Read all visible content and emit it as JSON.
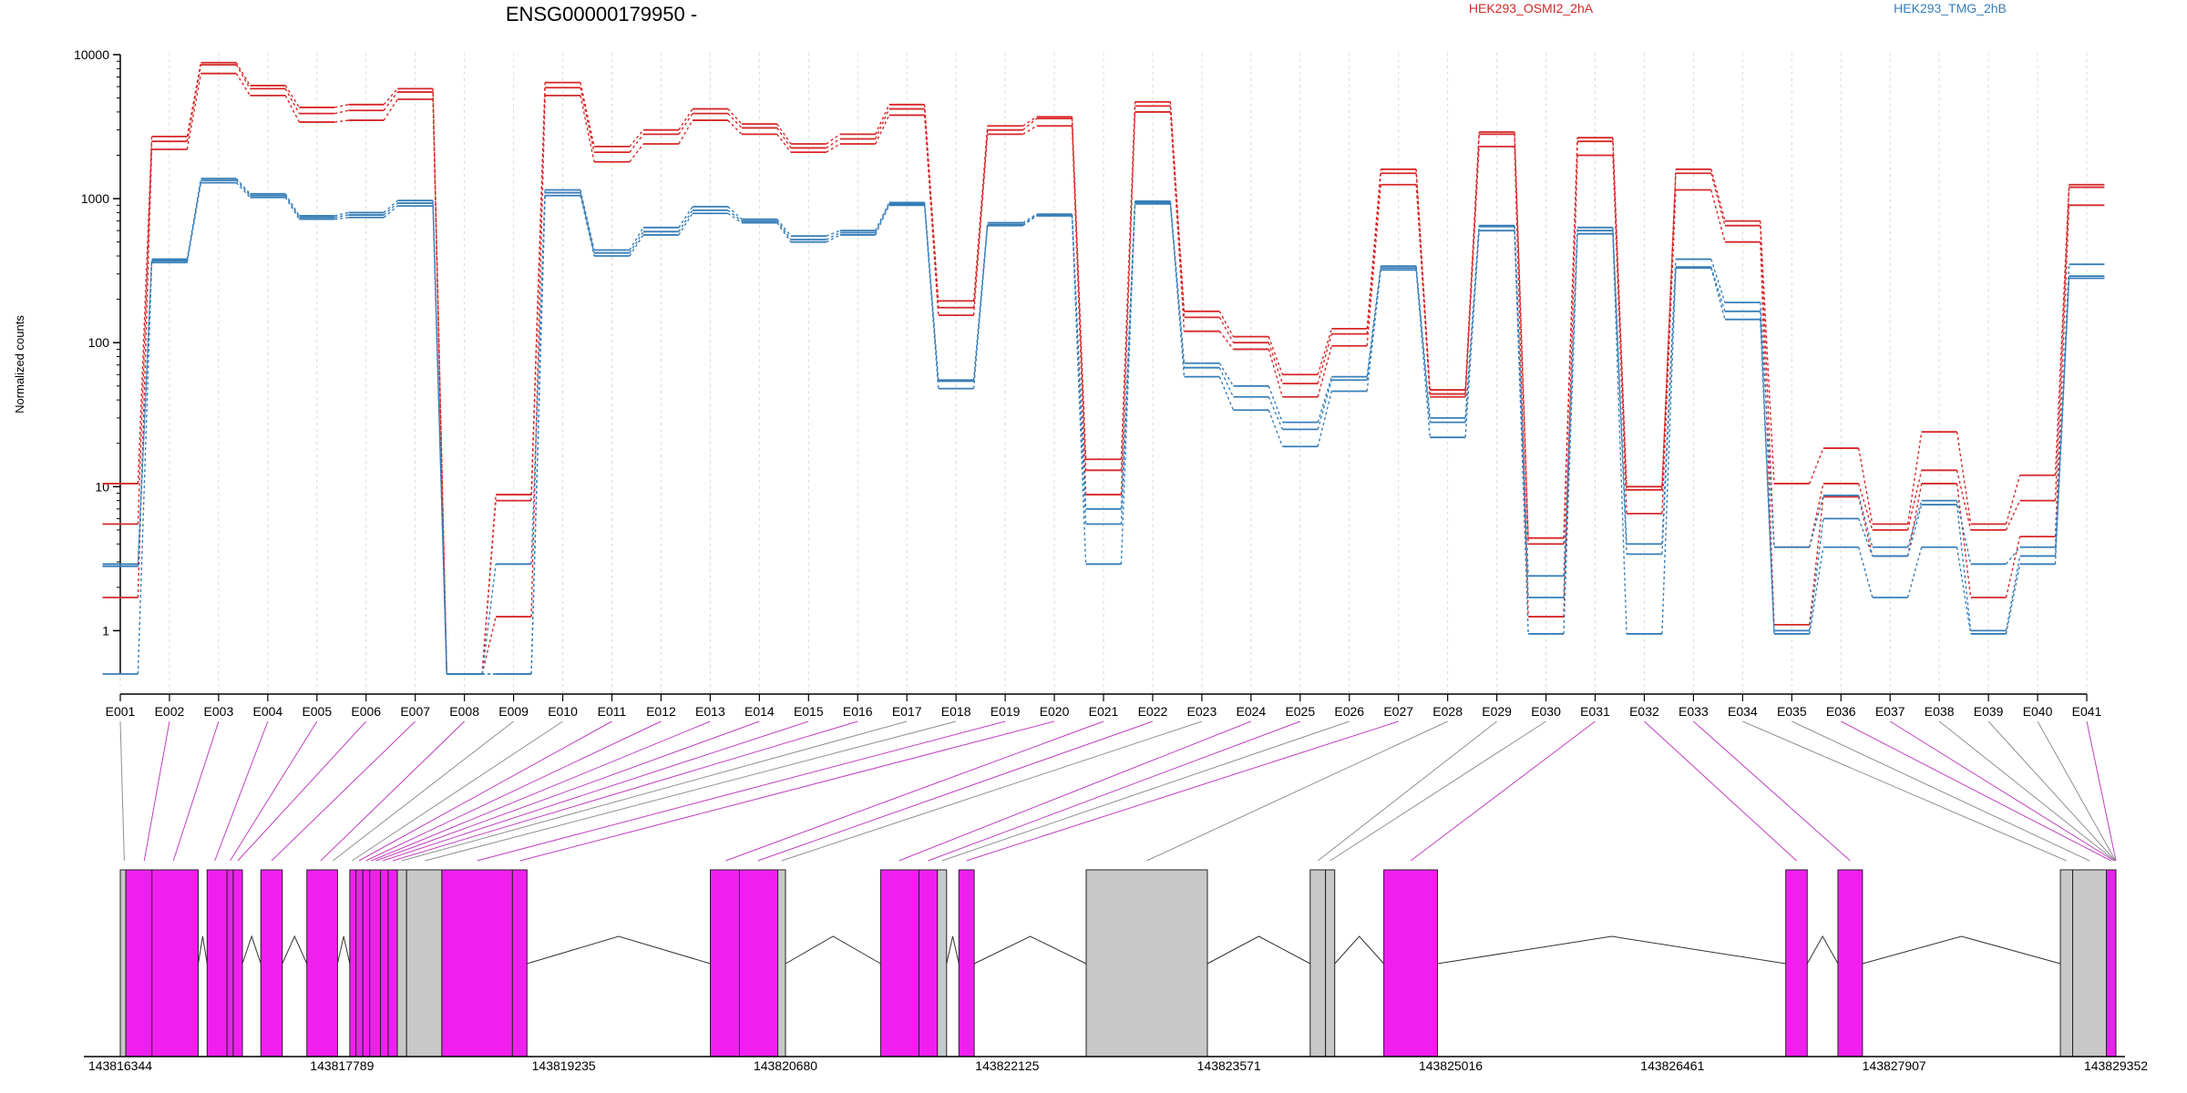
{
  "chart_data": {
    "type": "line",
    "title": "ENSG00000179950 -",
    "ylabel": "Normalized counts",
    "yscale": "log",
    "yticks": [
      "10000",
      "1000",
      "100",
      "10",
      "1"
    ],
    "ylim": [
      0.5,
      10000
    ],
    "grid": "vertical dotted lines at each exon",
    "legend": "top-right",
    "colors": {
      "HEK293_OSMI2_2hA": "#d62728",
      "HEK293_TMG_2hB": "#377eb8",
      "exon_used": "#f01ff0",
      "exon_unused": "#c8c8c8",
      "connector_used": "#c040c0",
      "connector_unused": "#909090"
    },
    "categories": [
      "E001",
      "E002",
      "E003",
      "E004",
      "E005",
      "E006",
      "E007",
      "E008",
      "E009",
      "E010",
      "E011",
      "E012",
      "E013",
      "E014",
      "E015",
      "E016",
      "E017",
      "E018",
      "E019",
      "E020",
      "E021",
      "E022",
      "E023",
      "E024",
      "E025",
      "E026",
      "E027",
      "E028",
      "E029",
      "E030",
      "E031",
      "E032",
      "E033",
      "E034",
      "E035",
      "E036",
      "E037",
      "E038",
      "E039",
      "E040",
      "E041"
    ],
    "groups": [
      {
        "name": "HEK293_OSMI2_2hA",
        "color": "#d62728",
        "samples": [
          [
            10.5,
            2700,
            8800,
            6100,
            4300,
            4500,
            5800,
            0.5,
            8.8,
            6400,
            2300,
            3000,
            4200,
            3300,
            2400,
            2800,
            4500,
            195,
            3200,
            3700,
            15.5,
            4700,
            165,
            110,
            60,
            125,
            1600,
            47,
            2900,
            4.4,
            2650,
            10,
            1600,
            700,
            10.5,
            18.5,
            5.5,
            24,
            5.5,
            12,
            1250
          ],
          [
            5.5,
            2500,
            8500,
            5800,
            3900,
            4100,
            5500,
            0.5,
            8.0,
            5900,
            2100,
            2800,
            3900,
            3100,
            2250,
            2600,
            4200,
            175,
            3000,
            3600,
            13,
            4400,
            150,
            100,
            52,
            115,
            1500,
            44,
            2800,
            4.0,
            2500,
            9.5,
            1500,
            650,
            3.8,
            10.5,
            5.0,
            13,
            5.0,
            8,
            1200
          ],
          [
            1.7,
            2200,
            7400,
            5200,
            3400,
            3500,
            4900,
            0.5,
            1.25,
            5200,
            1800,
            2400,
            3500,
            2800,
            2100,
            2400,
            3800,
            155,
            2800,
            3200,
            8.8,
            4000,
            120,
            90,
            42,
            95,
            1250,
            42,
            2300,
            1.25,
            2000,
            6.5,
            1150,
            500,
            1.1,
            8.5,
            3.3,
            10.5,
            1.7,
            4.5,
            900
          ]
        ]
      },
      {
        "name": "HEK293_TMG_2hB",
        "color": "#377eb8",
        "samples": [
          [
            2.9,
            380,
            1380,
            1080,
            760,
            800,
            970,
            0.5,
            2.9,
            1150,
            440,
            630,
            880,
            720,
            550,
            600,
            940,
            55,
            680,
            780,
            7.0,
            960,
            72,
            50,
            28,
            58,
            340,
            30,
            650,
            2.4,
            630,
            4.0,
            380,
            190,
            3.8,
            8.7,
            3.8,
            8.0,
            2.9,
            3.8,
            350
          ],
          [
            2.8,
            370,
            1340,
            1050,
            740,
            770,
            930,
            0.5,
            0.5,
            1100,
            420,
            590,
            830,
            700,
            520,
            580,
            920,
            54,
            660,
            770,
            5.5,
            940,
            67,
            42,
            25,
            55,
            330,
            28,
            640,
            1.7,
            600,
            3.4,
            335,
            165,
            1.0,
            6.0,
            3.3,
            7.5,
            1.0,
            3.3,
            290
          ],
          [
            0.5,
            360,
            1290,
            1020,
            720,
            740,
            890,
            0.5,
            0.5,
            1050,
            400,
            560,
            790,
            680,
            500,
            560,
            900,
            48,
            650,
            760,
            2.9,
            920,
            58,
            34,
            19,
            46,
            320,
            22,
            600,
            0.95,
            570,
            0.95,
            330,
            145,
            0.95,
            3.8,
            1.7,
            3.8,
            0.95,
            2.9,
            280
          ]
        ]
      }
    ],
    "gene_model": {
      "x_ticks": [
        "143816344",
        "143817789",
        "143819235",
        "143820680",
        "143822125",
        "143823571",
        "143825016",
        "143826461",
        "143827907",
        "143829352"
      ],
      "x_range": [
        143816344,
        143829352
      ],
      "exons": [
        {
          "start": 143816344,
          "end": 143816380,
          "used": false
        },
        {
          "start": 143816380,
          "end": 143816550,
          "used": true
        },
        {
          "start": 143816550,
          "end": 143816852,
          "used": true
        },
        {
          "start": 143816910,
          "end": 143817040,
          "used": true
        },
        {
          "start": 143817040,
          "end": 143817080,
          "used": true
        },
        {
          "start": 143817080,
          "end": 143817140,
          "used": true
        },
        {
          "start": 143817260,
          "end": 143817400,
          "used": true
        },
        {
          "start": 143817560,
          "end": 143817760,
          "used": true
        },
        {
          "start": 143817840,
          "end": 143817880,
          "used": true
        },
        {
          "start": 143817880,
          "end": 143817925,
          "used": true
        },
        {
          "start": 143817925,
          "end": 143817970,
          "used": true
        },
        {
          "start": 143817970,
          "end": 143818040,
          "used": true
        },
        {
          "start": 143818040,
          "end": 143818090,
          "used": true
        },
        {
          "start": 143818090,
          "end": 143818150,
          "used": true
        },
        {
          "start": 143818150,
          "end": 143818210,
          "used": false
        },
        {
          "start": 143818210,
          "end": 143818440,
          "used": false
        },
        {
          "start": 143818440,
          "end": 143818900,
          "used": true
        },
        {
          "start": 143818900,
          "end": 143818995,
          "used": true
        },
        {
          "start": 143820190,
          "end": 143820380,
          "used": true
        },
        {
          "start": 143820380,
          "end": 143820630,
          "used": true
        },
        {
          "start": 143820630,
          "end": 143820680,
          "used": false
        },
        {
          "start": 143821300,
          "end": 143821550,
          "used": true
        },
        {
          "start": 143821550,
          "end": 143821670,
          "used": true
        },
        {
          "start": 143821670,
          "end": 143821730,
          "used": false
        },
        {
          "start": 143821810,
          "end": 143821910,
          "used": true
        },
        {
          "start": 143822640,
          "end": 143823430,
          "used": false
        },
        {
          "start": 143824100,
          "end": 143824200,
          "used": false
        },
        {
          "start": 143824200,
          "end": 143824260,
          "used": false
        },
        {
          "start": 143824580,
          "end": 143824930,
          "used": true
        },
        {
          "start": 143827200,
          "end": 143827340,
          "used": true
        },
        {
          "start": 143827540,
          "end": 143827700,
          "used": true
        },
        {
          "start": 143828990,
          "end": 143829070,
          "used": false
        },
        {
          "start": 143829070,
          "end": 143829290,
          "used": false
        },
        {
          "start": 143829290,
          "end": 143829352,
          "used": true
        }
      ],
      "introns": [
        [
          143816852,
          143816910
        ],
        [
          143817140,
          143817260
        ],
        [
          143817400,
          143817560
        ],
        [
          143817760,
          143817840
        ],
        [
          143818995,
          143820190
        ],
        [
          143820680,
          143821300
        ],
        [
          143821730,
          143821810
        ],
        [
          143821910,
          143822640
        ],
        [
          143823430,
          143824100
        ],
        [
          143824260,
          143824580
        ],
        [
          143824930,
          143827200
        ],
        [
          143827340,
          143827540
        ],
        [
          143827700,
          143828990
        ]
      ],
      "connector_targets": [
        {
          "pos": 143816370,
          "used": false
        },
        {
          "pos": 143816500,
          "used": true
        },
        {
          "pos": 143816690,
          "used": true
        },
        {
          "pos": 143816960,
          "used": true
        },
        {
          "pos": 143817060,
          "used": true
        },
        {
          "pos": 143817110,
          "used": true
        },
        {
          "pos": 143817330,
          "used": true
        },
        {
          "pos": 143817650,
          "used": true
        },
        {
          "pos": 143817730,
          "used": false
        },
        {
          "pos": 143817855,
          "used": false
        },
        {
          "pos": 143817900,
          "used": true
        },
        {
          "pos": 143817945,
          "used": true
        },
        {
          "pos": 143817980,
          "used": true
        },
        {
          "pos": 143818010,
          "used": true
        },
        {
          "pos": 143818055,
          "used": true
        },
        {
          "pos": 143818120,
          "used": true
        },
        {
          "pos": 143818180,
          "used": false
        },
        {
          "pos": 143818330,
          "used": false
        },
        {
          "pos": 143818670,
          "used": true
        },
        {
          "pos": 143818950,
          "used": true
        },
        {
          "pos": 143820290,
          "used": true
        },
        {
          "pos": 143820500,
          "used": true
        },
        {
          "pos": 143820655,
          "used": false
        },
        {
          "pos": 143821420,
          "used": true
        },
        {
          "pos": 143821610,
          "used": true
        },
        {
          "pos": 143821700,
          "used": false
        },
        {
          "pos": 143821860,
          "used": true
        },
        {
          "pos": 143823035,
          "used": false
        },
        {
          "pos": 143824150,
          "used": false
        },
        {
          "pos": 143824230,
          "used": false
        },
        {
          "pos": 143824755,
          "used": true
        },
        {
          "pos": 143827270,
          "used": true
        },
        {
          "pos": 143827620,
          "used": true
        },
        {
          "pos": 143829030,
          "used": false
        },
        {
          "pos": 143829180,
          "used": false
        },
        {
          "pos": 143829320,
          "used": true
        },
        {
          "pos": 143829340,
          "used": true
        },
        {
          "pos": 143829345,
          "used": false
        },
        {
          "pos": 143829348,
          "used": false
        },
        {
          "pos": 143829350,
          "used": false
        },
        {
          "pos": 143829352,
          "used": true
        }
      ]
    }
  }
}
